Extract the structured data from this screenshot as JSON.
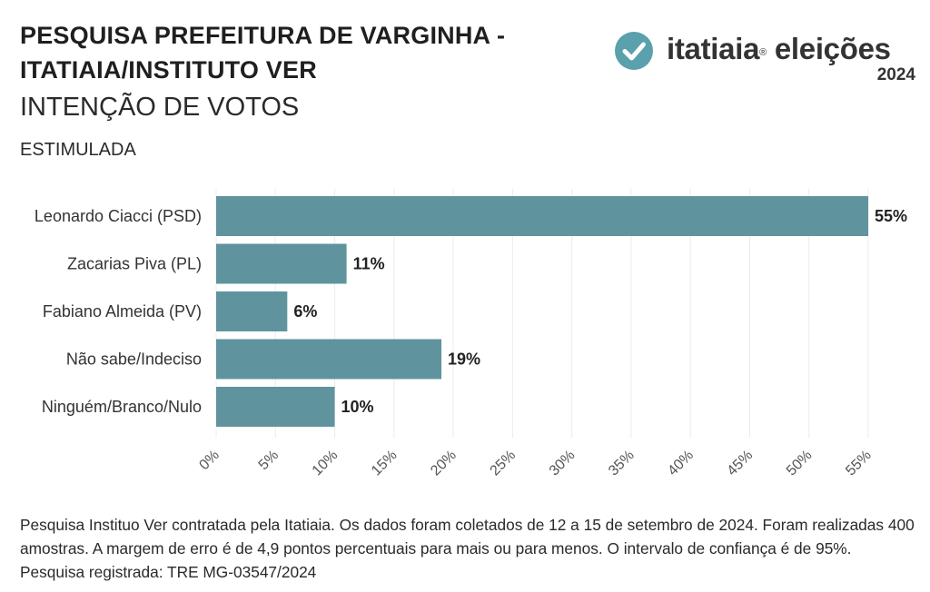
{
  "header": {
    "title_line1": "PESQUISA PREFEITURA DE VARGINHA -",
    "title_line2": "ITATIAIA/INSTITUTO VER",
    "subtitle": "INTENÇÃO DE VOTOS",
    "subtitle2": "ESTIMULADA"
  },
  "brand": {
    "name": "itatiaia",
    "registered": "®",
    "section": "eleições",
    "year": "2024",
    "icon": "check-circle-icon",
    "icon_color": "#5aa0ad"
  },
  "chart_data": {
    "type": "bar",
    "orientation": "horizontal",
    "categories": [
      "Leonardo Ciacci (PSD)",
      "Zacarias Piva (PL)",
      "Fabiano Almeida (PV)",
      "Não sabe/Indeciso",
      "Ninguém/Branco/Nulo"
    ],
    "values": [
      55,
      11,
      6,
      19,
      10
    ],
    "value_labels": [
      "55%",
      "11%",
      "6%",
      "19%",
      "10%"
    ],
    "xlim": [
      0,
      55
    ],
    "x_ticks": [
      "0%",
      "5%",
      "10%",
      "15%",
      "20%",
      "25%",
      "30%",
      "35%",
      "40%",
      "45%",
      "50%",
      "55%"
    ],
    "grid": "vertical",
    "bar_color": "#5f949e",
    "title": "",
    "xlabel": "",
    "ylabel": ""
  },
  "footnote": "Pesquisa Instituo Ver contratada pela Itatiaia. Os dados foram coletados de 12 a 15 de setembro de 2024. Foram realizadas 400 amostras. A margem de erro é de 4,9 pontos percentuais para mais ou para menos. O intervalo de confiança é de 95%. Pesquisa registrada: TRE MG-03547/2024"
}
